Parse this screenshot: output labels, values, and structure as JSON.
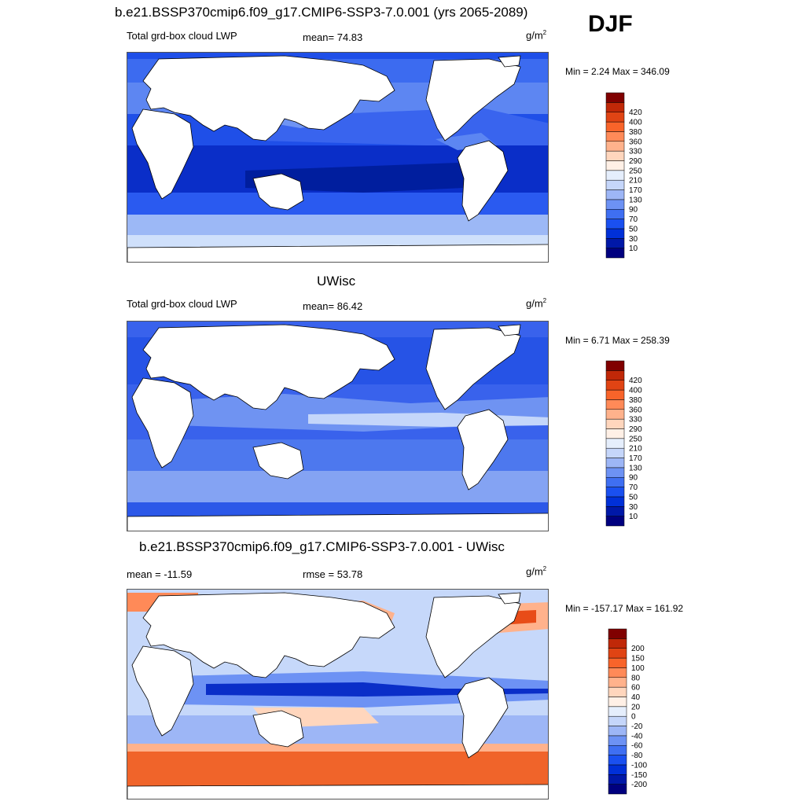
{
  "header": {
    "title": "b.e21.BSSP370cmip6.f09_g17.CMIP6-SSP3-7.0.001 (yrs 2065-2089)",
    "season": "DJF"
  },
  "panel1": {
    "variable": "Total grd-box cloud LWP",
    "mean": "mean=  74.83",
    "units": "g/m",
    "units_exp": "2",
    "minmax": "Min =   2.24 Max = 346.09"
  },
  "panel2": {
    "title": "UWisc",
    "variable": "Total grd-box cloud LWP",
    "mean": "mean=  86.42",
    "units": "g/m",
    "units_exp": "2",
    "minmax": "Min =   6.71 Max = 258.39"
  },
  "panel3": {
    "title": "b.e21.BSSP370cmip6.f09_g17.CMIP6-SSP3-7.0.001 - UWisc",
    "mean": "mean = -11.59",
    "rmse": "rmse =  53.78",
    "units": "g/m",
    "units_exp": "2",
    "minmax": "Min = -157.17 Max = 161.92"
  },
  "colorbars": {
    "lwp": {
      "labels": [
        "10",
        "30",
        "50",
        "70",
        "90",
        "130",
        "170",
        "210",
        "250",
        "290",
        "330",
        "360",
        "380",
        "400",
        "420"
      ],
      "colors": [
        "#00007f",
        "#0018a8",
        "#0030d8",
        "#1a50f0",
        "#3f6ff2",
        "#6d92f4",
        "#9db6f6",
        "#c5d6fa",
        "#e5eefc",
        "#fff0e6",
        "#ffd6bd",
        "#ffb28c",
        "#ff8a58",
        "#f8642a",
        "#e04414",
        "#c02808",
        "#800000"
      ]
    },
    "diff": {
      "labels": [
        "-200",
        "-150",
        "-100",
        "-80",
        "-60",
        "-40",
        "-20",
        "0",
        "20",
        "40",
        "60",
        "80",
        "100",
        "150",
        "200"
      ],
      "colors": [
        "#00007f",
        "#0018a8",
        "#0030d8",
        "#1a50f0",
        "#3f6ff2",
        "#6d92f4",
        "#9db6f6",
        "#c5d6fa",
        "#e5eefc",
        "#fff0e6",
        "#ffd6bd",
        "#ffb28c",
        "#ff8a58",
        "#f8642a",
        "#e04414",
        "#c02808",
        "#800000"
      ]
    }
  },
  "map_colors": {
    "land": "#ffffff",
    "coast": "#000000"
  }
}
